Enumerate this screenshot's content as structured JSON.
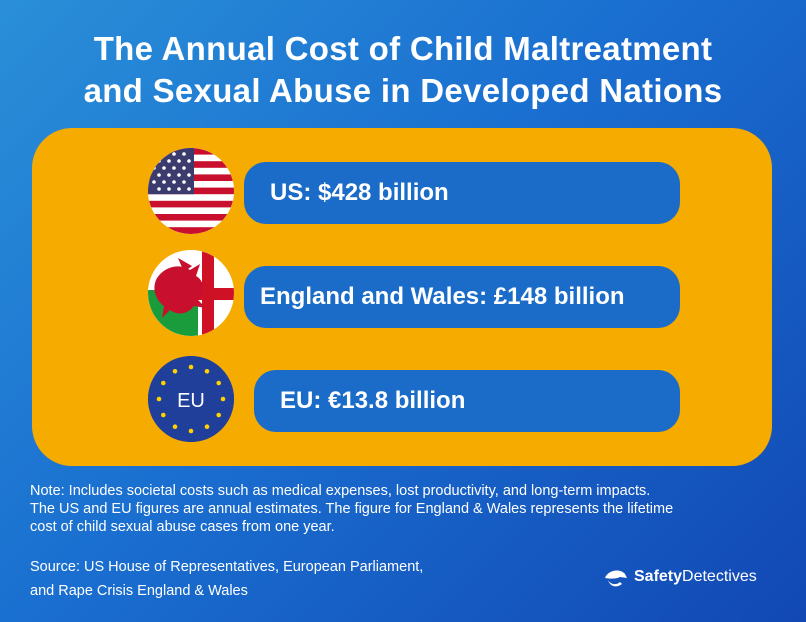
{
  "title_line1": "The Annual Cost of Child Maltreatment",
  "title_line2": "and Sexual Abuse in Developed Nations",
  "rows": [
    {
      "label": "US: $428 billion",
      "flag": "us-flag"
    },
    {
      "label": "England and Wales: £148 billion",
      "flag": "wales-england-flag"
    },
    {
      "label": "EU: €13.8 billion",
      "flag": "eu-flag",
      "flag_text": "EU"
    }
  ],
  "note_line1": "Note: Includes societal costs such as medical expenses, lost productivity, and long-term impacts.",
  "note_line2": "The US and EU figures are annual estimates. The figure for England & Wales represents the lifetime",
  "note_line3": "cost of child sexual abuse cases from one year.",
  "source_line1": "Source: US House of Representatives, European Parliament,",
  "source_line2": "and Rape Crisis England & Wales",
  "brand_part1": "Safety",
  "brand_part2": "Detectives",
  "colors": {
    "panel": "#f6ab01",
    "pill": "#1b6cc8"
  }
}
